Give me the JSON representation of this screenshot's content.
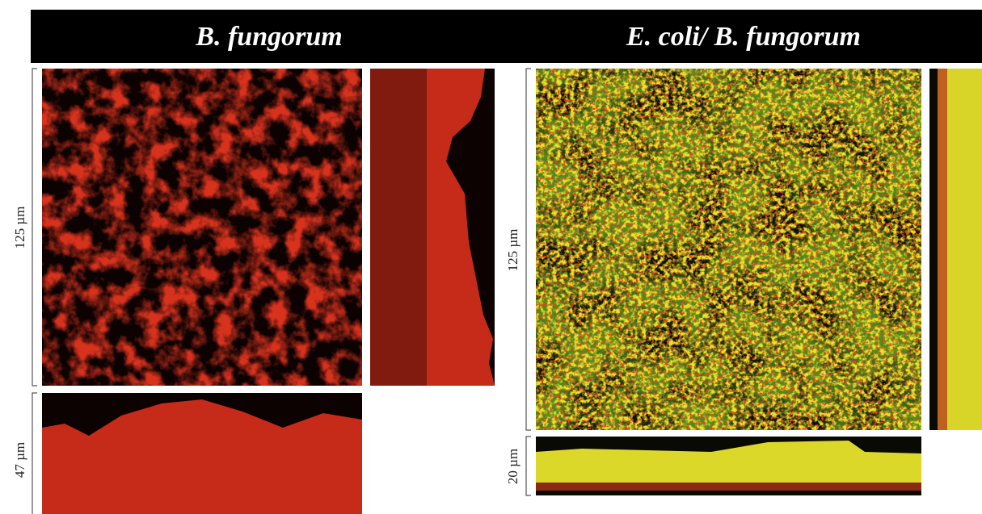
{
  "header": {
    "left_title": "B. fungorum",
    "right_title": "E. coli/ B. fungorum"
  },
  "panels": [
    {
      "scale_xy": "125 µm",
      "scale_z": "47 µm"
    },
    {
      "scale_xy": "125 µm",
      "scale_z": "20 µm"
    }
  ]
}
